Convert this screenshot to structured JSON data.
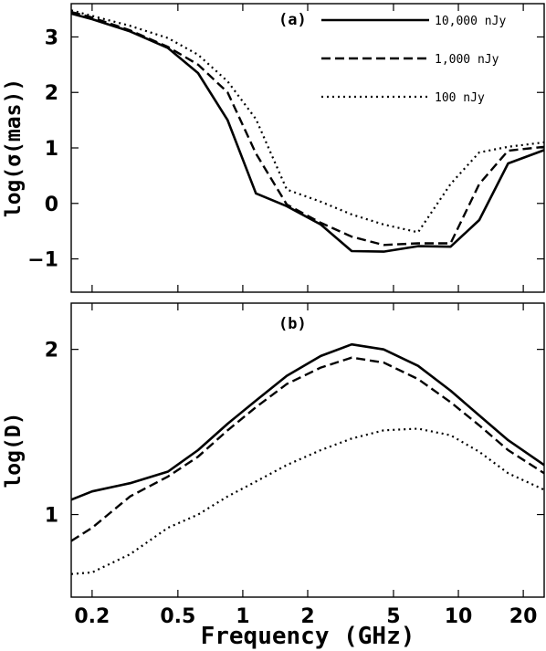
{
  "chart_data": [
    {
      "type": "line",
      "panel_label": "(a)",
      "ylabel": "log(σ(mas))",
      "xscale": "log",
      "xlim": [
        0.16,
        25
      ],
      "ylim": [
        -1.6,
        3.6
      ],
      "yticks": [
        -1,
        0,
        1,
        2,
        3
      ],
      "yticklabels": [
        "−1",
        "0",
        "1",
        "2",
        "3"
      ],
      "legend_position": "top-right",
      "series": [
        {
          "name": "10,000 nJy",
          "style": "solid",
          "x": [
            0.16,
            0.2,
            0.3,
            0.45,
            0.62,
            0.85,
            1.15,
            1.6,
            2.3,
            3.2,
            4.5,
            6.5,
            9.2,
            12.5,
            17,
            25
          ],
          "y": [
            3.42,
            3.32,
            3.1,
            2.8,
            2.35,
            1.5,
            0.18,
            -0.05,
            -0.38,
            -0.86,
            -0.87,
            -0.77,
            -0.78,
            -0.3,
            0.72,
            0.96
          ]
        },
        {
          "name": "1,000 nJy",
          "style": "dashed",
          "x": [
            0.16,
            0.2,
            0.3,
            0.45,
            0.62,
            0.85,
            1.15,
            1.6,
            2.3,
            3.2,
            4.5,
            6.5,
            9.2,
            12.5,
            17,
            25
          ],
          "y": [
            3.45,
            3.35,
            3.12,
            2.82,
            2.5,
            2.0,
            0.9,
            -0.02,
            -0.35,
            -0.6,
            -0.75,
            -0.72,
            -0.72,
            0.35,
            0.95,
            1.02
          ]
        },
        {
          "name": "100 nJy",
          "style": "dotted",
          "x": [
            0.16,
            0.2,
            0.3,
            0.45,
            0.62,
            0.85,
            1.15,
            1.6,
            2.3,
            3.2,
            4.5,
            6.5,
            9.2,
            12.5,
            17,
            25
          ],
          "y": [
            3.48,
            3.38,
            3.2,
            2.98,
            2.68,
            2.2,
            1.52,
            0.25,
            0.03,
            -0.2,
            -0.38,
            -0.52,
            0.35,
            0.92,
            1.02,
            1.1
          ]
        }
      ]
    },
    {
      "type": "line",
      "panel_label": "(b)",
      "ylabel": "log(D)",
      "xlabel": "Frequency (GHz)",
      "xscale": "log",
      "xlim": [
        0.16,
        25
      ],
      "ylim": [
        0.5,
        2.28
      ],
      "yticks": [
        1,
        2
      ],
      "yticklabels": [
        "1",
        "2"
      ],
      "xticks": [
        0.2,
        0.5,
        1,
        2,
        5,
        10,
        20
      ],
      "xticklabels": [
        "0.2",
        "0.5",
        "1",
        "2",
        "5",
        "10",
        "20"
      ],
      "series": [
        {
          "name": "10,000 nJy",
          "style": "solid",
          "x": [
            0.16,
            0.2,
            0.3,
            0.45,
            0.62,
            0.85,
            1.15,
            1.6,
            2.3,
            3.2,
            4.5,
            6.5,
            9.2,
            12.5,
            17,
            25
          ],
          "y": [
            1.09,
            1.14,
            1.19,
            1.26,
            1.39,
            1.55,
            1.69,
            1.84,
            1.96,
            2.03,
            2.0,
            1.9,
            1.75,
            1.6,
            1.45,
            1.3
          ]
        },
        {
          "name": "1,000 nJy",
          "style": "dashed",
          "x": [
            0.16,
            0.2,
            0.3,
            0.45,
            0.62,
            0.85,
            1.15,
            1.6,
            2.3,
            3.2,
            4.5,
            6.5,
            9.2,
            12.5,
            17,
            25
          ],
          "y": [
            0.84,
            0.92,
            1.11,
            1.23,
            1.35,
            1.51,
            1.65,
            1.79,
            1.89,
            1.95,
            1.92,
            1.82,
            1.68,
            1.54,
            1.39,
            1.25
          ]
        },
        {
          "name": "100 nJy",
          "style": "dotted",
          "x": [
            0.16,
            0.2,
            0.3,
            0.45,
            0.62,
            0.85,
            1.15,
            1.6,
            2.3,
            3.2,
            4.5,
            6.5,
            9.2,
            12.5,
            17,
            25
          ],
          "y": [
            0.64,
            0.65,
            0.76,
            0.92,
            1.0,
            1.11,
            1.2,
            1.3,
            1.39,
            1.46,
            1.51,
            1.52,
            1.48,
            1.38,
            1.25,
            1.15
          ]
        }
      ]
    }
  ]
}
